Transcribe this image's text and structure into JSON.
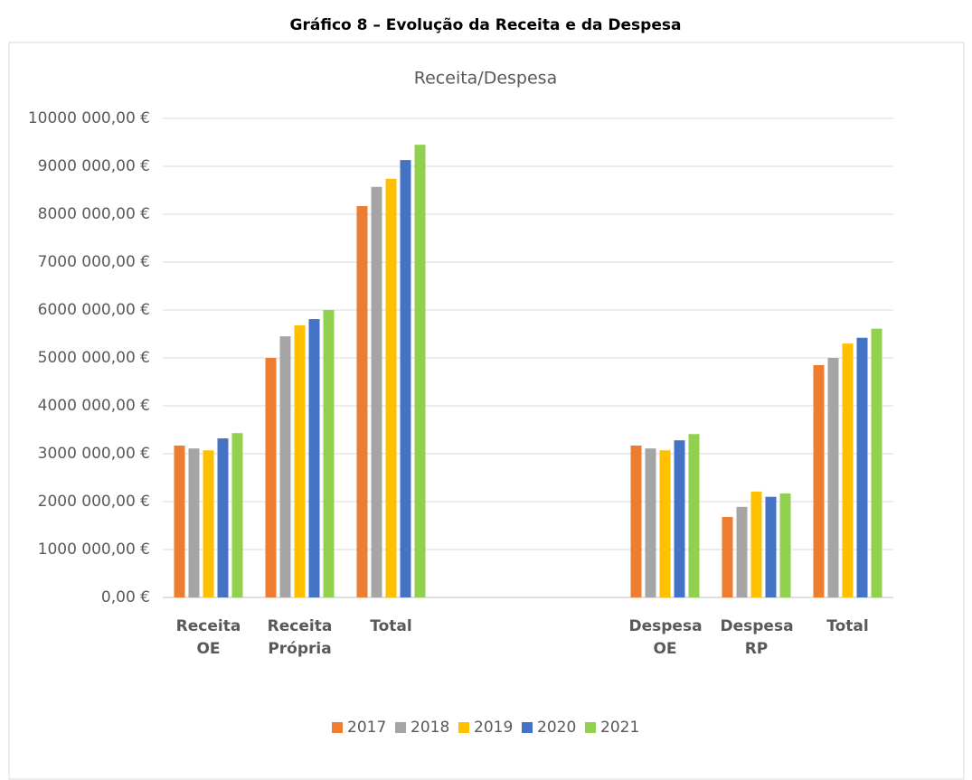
{
  "page_title": "Gráfico 8 – Evolução da Receita e da Despesa",
  "chart_data": {
    "type": "bar",
    "title": "Receita/Despesa",
    "categories": [
      "Receita OE",
      "Receita Própria",
      "Total",
      null,
      null,
      "Despesa OE",
      "Despesa RP",
      "Total"
    ],
    "series": [
      {
        "name": "2017",
        "color": "#ed7d31",
        "values": [
          3170000,
          5000000,
          8170000,
          null,
          null,
          3170000,
          1680000,
          4850000
        ]
      },
      {
        "name": "2018",
        "color": "#a5a5a5",
        "values": [
          3110000,
          5450000,
          8570000,
          null,
          null,
          3110000,
          1890000,
          5000000
        ]
      },
      {
        "name": "2019",
        "color": "#ffc000",
        "values": [
          3070000,
          5680000,
          8740000,
          null,
          null,
          3070000,
          2210000,
          5300000
        ]
      },
      {
        "name": "2020",
        "color": "#4472c4",
        "values": [
          3320000,
          5810000,
          9130000,
          null,
          null,
          3280000,
          2100000,
          5420000
        ]
      },
      {
        "name": "2021",
        "color": "#92d050",
        "values": [
          3430000,
          6000000,
          9450000,
          null,
          null,
          3410000,
          2170000,
          5610000
        ]
      }
    ],
    "ylim": [
      0,
      10000000
    ],
    "yticks": [
      {
        "value": 0,
        "label": "0,00 €"
      },
      {
        "value": 1000000,
        "label": "1000 000,00 €"
      },
      {
        "value": 2000000,
        "label": "2000 000,00 €"
      },
      {
        "value": 3000000,
        "label": "3000 000,00 €"
      },
      {
        "value": 4000000,
        "label": "4000 000,00 €"
      },
      {
        "value": 5000000,
        "label": "5000 000,00 €"
      },
      {
        "value": 6000000,
        "label": "6000 000,00 €"
      },
      {
        "value": 7000000,
        "label": "7000 000,00 €"
      },
      {
        "value": 8000000,
        "label": "8000 000,00 €"
      },
      {
        "value": 9000000,
        "label": "9000 000,00 €"
      },
      {
        "value": 10000000,
        "label": "10000 000,00 €"
      }
    ],
    "grid": true,
    "legend": "bottom"
  }
}
